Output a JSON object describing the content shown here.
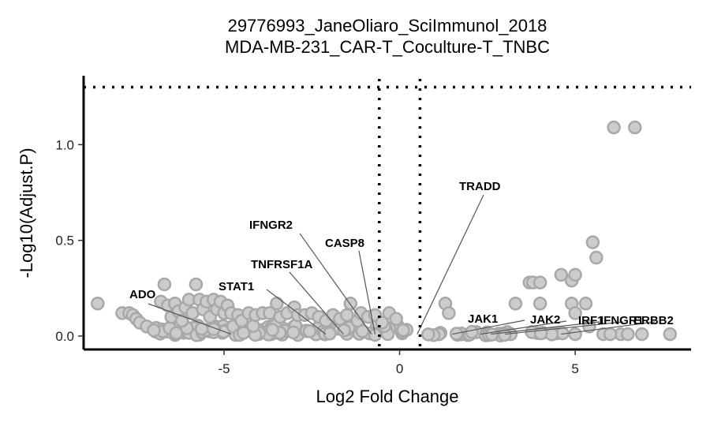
{
  "chart_data": {
    "type": "scatter",
    "title": "29776993_JaneOliaro_SciImmunol_2018",
    "subtitle": "MDA-MB-231_CAR-T_Coculture-T_TNBC",
    "xlabel": "Log2 Fold Change",
    "ylabel": "-Log10(Adjust.P)",
    "xlim": [
      -9.0,
      8.3
    ],
    "ylim": [
      -0.07,
      1.36
    ],
    "x_ticks": [
      -5,
      0,
      5
    ],
    "x_tick_labels": [
      "-5",
      "0",
      "5"
    ],
    "y_ticks": [
      0.0,
      0.5,
      1.0
    ],
    "y_tick_labels": [
      "0.0",
      "0.5",
      "1.0"
    ],
    "thresholds": {
      "x": [
        -0.58,
        0.58
      ],
      "y": 1.3
    },
    "grid": false,
    "legend": "none",
    "colors": {
      "point_fill": "#cccccc",
      "point_stroke": "#a8a8a8",
      "axis": "#000000",
      "connector": "#555555"
    },
    "points": [
      {
        "x": -8.6,
        "y": 0.17
      },
      {
        "x": -7.9,
        "y": 0.12
      },
      {
        "x": -7.7,
        "y": 0.12
      },
      {
        "x": -7.6,
        "y": 0.11
      },
      {
        "x": -7.5,
        "y": 0.09
      },
      {
        "x": -7.4,
        "y": 0.07
      },
      {
        "x": -7.2,
        "y": 0.05
      },
      {
        "x": -7.0,
        "y": 0.03
      },
      {
        "x": -6.8,
        "y": 0.18
      },
      {
        "x": -6.7,
        "y": 0.27
      },
      {
        "x": -6.6,
        "y": 0.16
      },
      {
        "x": -6.5,
        "y": 0.1
      },
      {
        "x": -6.4,
        "y": 0.17
      },
      {
        "x": -6.3,
        "y": 0.13
      },
      {
        "x": -6.2,
        "y": 0.08
      },
      {
        "x": -6.1,
        "y": 0.15
      },
      {
        "x": -6.0,
        "y": 0.19
      },
      {
        "x": -5.9,
        "y": 0.12
      },
      {
        "x": -5.8,
        "y": 0.27
      },
      {
        "x": -5.7,
        "y": 0.19
      },
      {
        "x": -5.6,
        "y": 0.14
      },
      {
        "x": -5.5,
        "y": 0.18
      },
      {
        "x": -5.4,
        "y": 0.1
      },
      {
        "x": -5.3,
        "y": 0.19
      },
      {
        "x": -5.2,
        "y": 0.14
      },
      {
        "x": -5.1,
        "y": 0.18
      },
      {
        "x": -5.0,
        "y": 0.12
      },
      {
        "x": -4.9,
        "y": 0.16
      },
      {
        "x": -4.8,
        "y": 0.12
      },
      {
        "x": -4.6,
        "y": 0.11
      },
      {
        "x": -4.5,
        "y": 0.08
      },
      {
        "x": -4.3,
        "y": 0.12
      },
      {
        "x": -4.1,
        "y": 0.11
      },
      {
        "x": -3.9,
        "y": 0.12
      },
      {
        "x": -3.7,
        "y": 0.12
      },
      {
        "x": -3.5,
        "y": 0.17
      },
      {
        "x": -3.4,
        "y": 0.1
      },
      {
        "x": -3.2,
        "y": 0.12
      },
      {
        "x": -3.0,
        "y": 0.15
      },
      {
        "x": -2.9,
        "y": 0.11
      },
      {
        "x": -2.7,
        "y": 0.11
      },
      {
        "x": -2.5,
        "y": 0.12
      },
      {
        "x": -2.3,
        "y": 0.1
      },
      {
        "x": -2.1,
        "y": 0.08
      },
      {
        "x": -1.9,
        "y": 0.11
      },
      {
        "x": -1.7,
        "y": 0.09
      },
      {
        "x": -1.5,
        "y": 0.11
      },
      {
        "x": -1.4,
        "y": 0.17
      },
      {
        "x": -1.2,
        "y": 0.08
      },
      {
        "x": -1.1,
        "y": 0.12
      },
      {
        "x": -0.9,
        "y": 0.1
      },
      {
        "x": -0.7,
        "y": 0.11
      },
      {
        "x": -0.5,
        "y": 0.07
      },
      {
        "x": -0.3,
        "y": 0.12
      },
      {
        "x": -0.1,
        "y": 0.09
      },
      {
        "x": 1.3,
        "y": 0.17
      },
      {
        "x": 1.4,
        "y": 0.12
      },
      {
        "x": 3.3,
        "y": 0.17
      },
      {
        "x": 3.7,
        "y": 0.28
      },
      {
        "x": 3.8,
        "y": 0.28
      },
      {
        "x": 4.0,
        "y": 0.28
      },
      {
        "x": 4.0,
        "y": 0.17
      },
      {
        "x": 4.6,
        "y": 0.32
      },
      {
        "x": 4.9,
        "y": 0.29
      },
      {
        "x": 4.9,
        "y": 0.17
      },
      {
        "x": 5.0,
        "y": 0.32
      },
      {
        "x": 5.0,
        "y": 0.12
      },
      {
        "x": 5.3,
        "y": 0.17
      },
      {
        "x": 5.5,
        "y": 0.49
      },
      {
        "x": 5.6,
        "y": 0.41
      },
      {
        "x": 5.4,
        "y": 0.05
      },
      {
        "x": 5.8,
        "y": 0.01
      },
      {
        "x": 6.1,
        "y": 1.09
      },
      {
        "x": 6.3,
        "y": 0.01
      },
      {
        "x": 6.5,
        "y": 0.01
      },
      {
        "x": 6.7,
        "y": 1.09
      },
      {
        "x": 6.9,
        "y": 0.01
      },
      {
        "x": 7.7,
        "y": 0.01
      },
      {
        "x": 6.0,
        "y": 0.01
      },
      {
        "x": 5.0,
        "y": 0.01
      }
    ],
    "labels": [
      {
        "text": "ADO",
        "x": -4.8,
        "y": 0.01
      },
      {
        "text": "STAT1",
        "x": -2.1,
        "y": 0.01
      },
      {
        "text": "TNFRSF1A",
        "x": -1.6,
        "y": 0.01
      },
      {
        "text": "IFNGR2",
        "x": -0.8,
        "y": 0.01
      },
      {
        "text": "CASP8",
        "x": -0.7,
        "y": 0.01
      },
      {
        "text": "TRADD",
        "x": 0.5,
        "y": 0.01
      },
      {
        "text": "JAK1",
        "x": 1.5,
        "y": 0.01
      },
      {
        "text": "JAK2",
        "x": 2.3,
        "y": 0.01
      },
      {
        "text": "IRF1",
        "x": 2.6,
        "y": 0.01
      },
      {
        "text": "IFNGR1",
        "x": 3.0,
        "y": 0.01
      },
      {
        "text": "ERBB2",
        "x": 4.6,
        "y": 0.01
      }
    ]
  }
}
